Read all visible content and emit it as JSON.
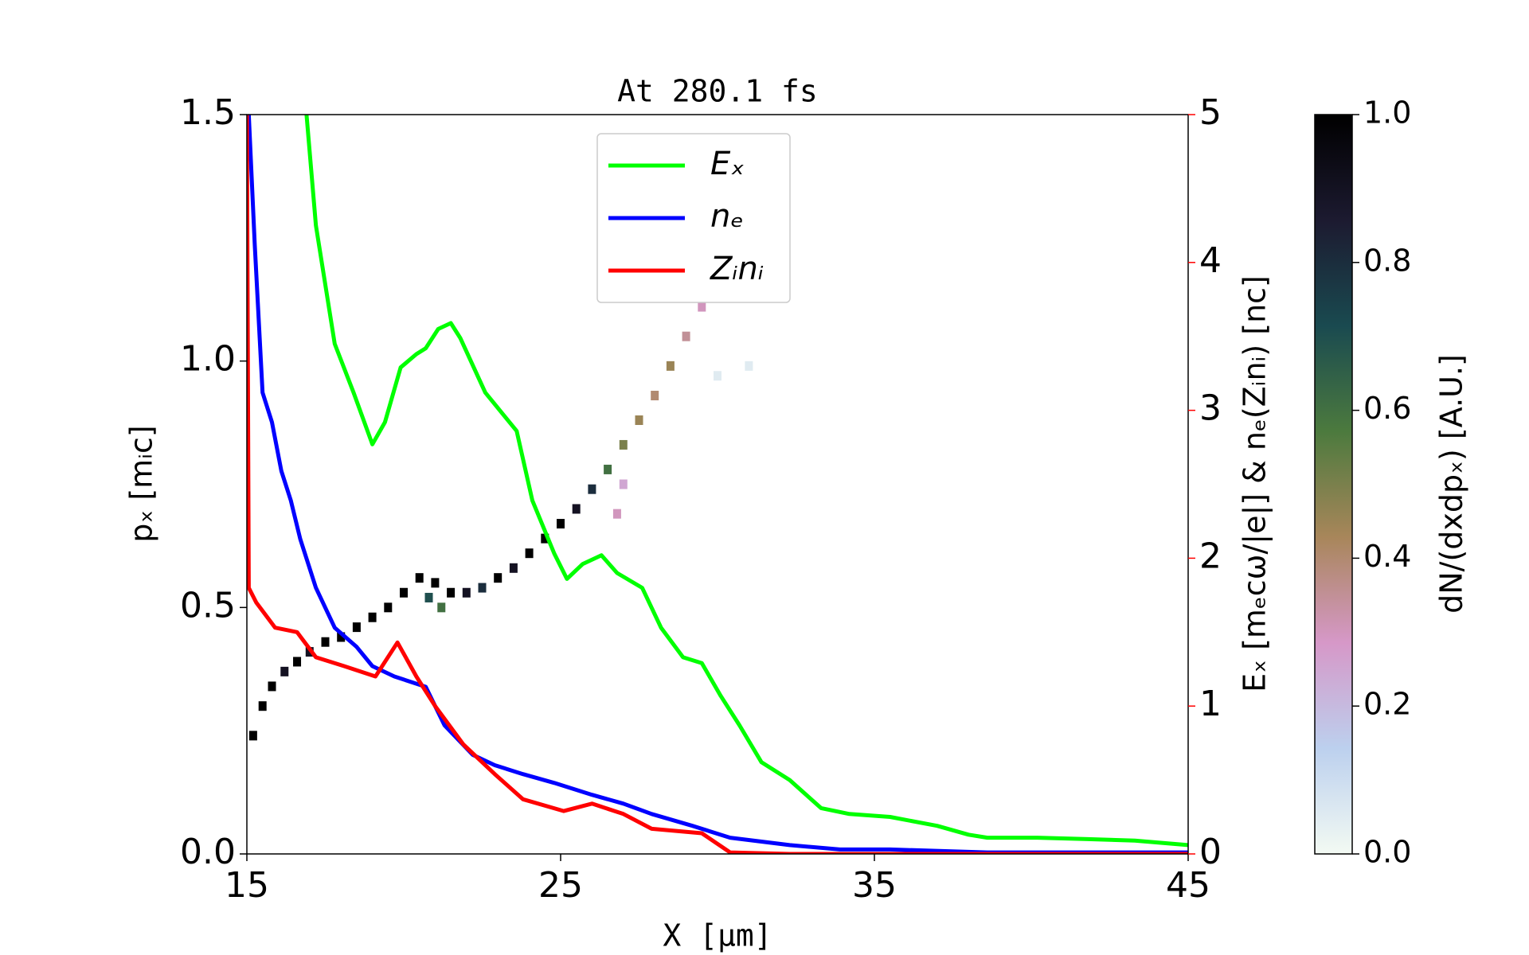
{
  "chart_data": {
    "type": "line",
    "title": "At 280.1 fs",
    "x_label": "X [μm]",
    "y_label": "pₓ  [mᵢc]",
    "y2_label": "Eₓ  [mₑcω/|e|]  &  nₑ(Zᵢnᵢ)  [nᴄ]",
    "xlim": [
      15,
      45
    ],
    "xticks": [
      15,
      25,
      35,
      45
    ],
    "ylim": [
      0,
      1.5
    ],
    "yticks": [
      {
        "value": 0,
        "label": "0.0"
      },
      {
        "value": 0.5,
        "label": "0.5"
      },
      {
        "value": 1,
        "label": "1.0"
      },
      {
        "value": 1.5,
        "label": "1.5"
      }
    ],
    "y2lim": [
      0,
      5
    ],
    "y2ticks": [
      0,
      1,
      2,
      3,
      4,
      5
    ],
    "y2_color": "#ff0000",
    "legend": "upper center",
    "series": [
      {
        "name": "Eₓ",
        "color": "#00ff00",
        "axis": "y2",
        "x": [
          16.9,
          17.2,
          17.8,
          18.4,
          19.0,
          19.4,
          19.9,
          20.4,
          20.7,
          21.1,
          21.5,
          21.8,
          22.6,
          23.6,
          24.1,
          24.8,
          25.2,
          25.7,
          26.3,
          26.8,
          27.6,
          28.2,
          28.9,
          29.5,
          30.1,
          30.7,
          31.4,
          32.3,
          33.3,
          34.2,
          35.5,
          37.0,
          38.0,
          38.6,
          40.2,
          41.8,
          43.3,
          45
        ],
        "values": [
          5,
          4.25,
          3.45,
          3.12,
          2.77,
          2.92,
          3.29,
          3.38,
          3.42,
          3.55,
          3.59,
          3.49,
          3.12,
          2.86,
          2.39,
          2.03,
          1.86,
          1.96,
          2.02,
          1.9,
          1.8,
          1.53,
          1.33,
          1.29,
          1.07,
          0.87,
          0.62,
          0.5,
          0.31,
          0.27,
          0.25,
          0.19,
          0.13,
          0.11,
          0.11,
          0.1,
          0.09,
          0.06
        ]
      },
      {
        "name": "nₑ",
        "color": "#0000ff",
        "axis": "y2",
        "x": [
          15.06,
          15.25,
          15.5,
          15.8,
          16.1,
          16.4,
          16.7,
          17.2,
          17.8,
          18.5,
          19.0,
          19.7,
          20.7,
          21.3,
          22.2,
          22.9,
          23.8,
          24.8,
          26.0,
          27.0,
          27.9,
          29.2,
          30.4,
          32.3,
          33.9,
          35.5,
          38.6,
          41.8,
          45
        ],
        "values": [
          5,
          4.12,
          3.12,
          2.92,
          2.59,
          2.39,
          2.13,
          1.8,
          1.53,
          1.4,
          1.27,
          1.2,
          1.13,
          0.87,
          0.67,
          0.6,
          0.54,
          0.48,
          0.4,
          0.34,
          0.27,
          0.19,
          0.11,
          0.06,
          0.03,
          0.03,
          0.01,
          0.01,
          0.01
        ]
      },
      {
        "name": "Zᵢnᵢ",
        "color": "#ff0000",
        "axis": "y2",
        "x": [
          15,
          15.06,
          15.3,
          15.9,
          16.6,
          17.2,
          18.1,
          19.1,
          19.8,
          20.4,
          21.0,
          21.9,
          22.9,
          23.8,
          25.1,
          26.0,
          27.0,
          27.9,
          29.5,
          30.4,
          32.3,
          45
        ],
        "values": [
          5,
          1.8,
          1.7,
          1.53,
          1.5,
          1.33,
          1.27,
          1.2,
          1.43,
          1.2,
          1.0,
          0.74,
          0.54,
          0.37,
          0.29,
          0.34,
          0.27,
          0.17,
          0.14,
          0.01,
          0,
          0
        ]
      }
    ],
    "heatmap": {
      "x": [
        15.2,
        15.5,
        15.8,
        16.2,
        16.6,
        17.0,
        17.5,
        18.0,
        18.5,
        19.0,
        19.5,
        20.0,
        20.5,
        21.0,
        21.5,
        22.0,
        22.5,
        23.0,
        23.5,
        24.0,
        24.5,
        25.0,
        25.5,
        26.0,
        26.5,
        27.0,
        27.5,
        28.0,
        28.5,
        29.0,
        29.5,
        26.8,
        27.0,
        30.0,
        31.0,
        20.8,
        21.2
      ],
      "y": [
        0.24,
        0.3,
        0.34,
        0.37,
        0.39,
        0.41,
        0.43,
        0.44,
        0.46,
        0.48,
        0.5,
        0.53,
        0.56,
        0.55,
        0.53,
        0.53,
        0.54,
        0.56,
        0.58,
        0.61,
        0.64,
        0.67,
        0.7,
        0.74,
        0.78,
        0.83,
        0.88,
        0.93,
        0.99,
        1.05,
        1.11,
        0.69,
        0.75,
        0.97,
        0.99,
        0.52,
        0.5
      ],
      "values": [
        1,
        1,
        1,
        0.9,
        1,
        0.9,
        1,
        1,
        1,
        1,
        1,
        1,
        1,
        1,
        1,
        0.9,
        0.8,
        1,
        0.9,
        1,
        1,
        1,
        0.9,
        0.8,
        0.6,
        0.5,
        0.45,
        0.4,
        0.45,
        0.35,
        0.3,
        0.3,
        0.25,
        0.05,
        0.05,
        0.7,
        0.6
      ]
    },
    "colorbar": {
      "label": "dN/(dxdpₓ)  [A.U.]",
      "lim": [
        0,
        1
      ],
      "ticks": [
        {
          "value": 0,
          "label": "0.0"
        },
        {
          "value": 0.2,
          "label": "0.2"
        },
        {
          "value": 0.4,
          "label": "0.4"
        },
        {
          "value": 0.6,
          "label": "0.6"
        },
        {
          "value": 0.8,
          "label": "0.8"
        },
        {
          "value": 1,
          "label": "1.0"
        }
      ],
      "colormap": [
        "#f3faf3",
        "#bcd0ee",
        "#d698c8",
        "#a8865a",
        "#4c7a3e",
        "#1a4a50",
        "#1c1a30",
        "#000000"
      ]
    }
  }
}
